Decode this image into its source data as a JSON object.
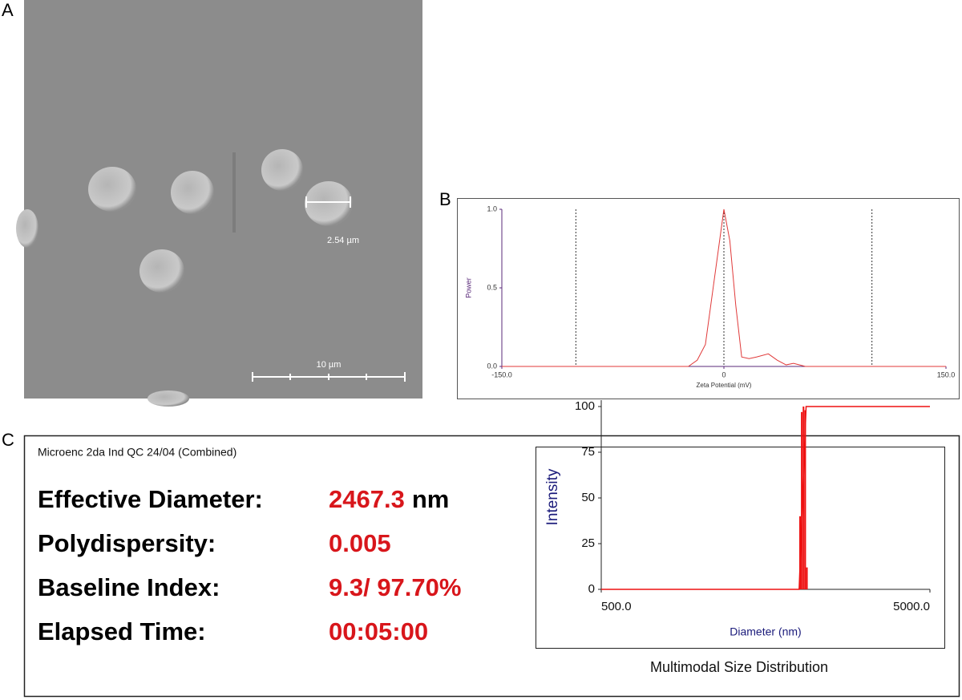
{
  "panels": {
    "a": "A",
    "b": "B",
    "c": "C"
  },
  "sem": {
    "measure_label": "2.54 µm",
    "scale_label": "10 µm"
  },
  "summary": {
    "sample": "Microenc 2da Ind QC 24/04 (Combined)",
    "rows": [
      {
        "label": "Effective Diameter:",
        "value": "2467.3",
        "unit": "nm"
      },
      {
        "label": "Polydispersity:",
        "value": "0.005"
      },
      {
        "label": "Baseline Index:",
        "value": "9.3/ 97.70%"
      },
      {
        "label": "Elapsed Time:",
        "value": "00:05:00"
      }
    ]
  },
  "chart_data": [
    {
      "type": "line",
      "xlabel": "Zeta Potential (mV)",
      "ylabel": "Power",
      "color": "#e03a3a",
      "x": [
        -150,
        -24,
        -18,
        -12.5,
        0,
        4,
        8,
        12,
        17,
        22,
        30,
        36,
        42,
        47,
        53,
        55,
        150
      ],
      "values": [
        0,
        0,
        0.04,
        0.14,
        1.0,
        0.8,
        0.39,
        0.06,
        0.05,
        0.06,
        0.08,
        0.04,
        0.01,
        0.02,
        0.005,
        0,
        0
      ],
      "xlim": [
        -150,
        150
      ],
      "xticks": [
        {
          "value": -150,
          "label": "-150.0"
        },
        0,
        {
          "value": 150,
          "label": "150.0"
        }
      ],
      "ylim": [
        0,
        1
      ],
      "yticks": [
        {
          "value": 0,
          "label": "0.0"
        },
        0.5,
        {
          "value": 1,
          "label": "1.0"
        }
      ],
      "vlines": [
        -100,
        0,
        100
      ]
    },
    {
      "type": "bar",
      "title": "Multimodal Size Distribution",
      "xlabel": "Diameter (nm)",
      "ylabel": "Intensity",
      "color": "#ee1111",
      "log_x": true,
      "x": [
        2013,
        2037,
        2062,
        2087,
        2112
      ],
      "values": [
        40,
        97,
        100,
        98,
        12
      ],
      "cumulative": {
        "x": [
          500,
          2000,
          2100,
          5000
        ],
        "values": [
          0,
          0,
          100,
          100
        ]
      },
      "xlim": [
        500,
        5000
      ],
      "xticks": [
        {
          "value": 500,
          "label": "500.0"
        },
        {
          "value": 5000,
          "label": "5000.0"
        }
      ],
      "ylim": [
        0,
        100
      ],
      "yticks": [
        0,
        25,
        50,
        75,
        100
      ]
    }
  ]
}
